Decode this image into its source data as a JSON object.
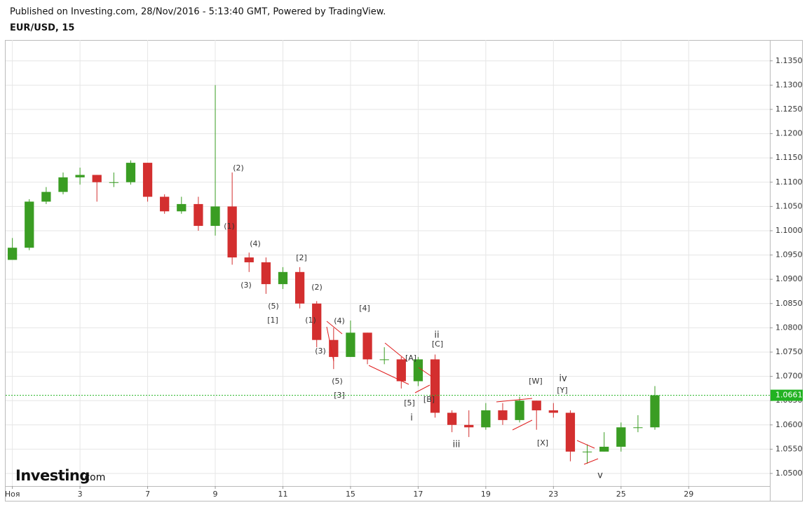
{
  "header": {
    "published": "Published on Investing.com, 28/Nov/2016 - 5:13:40 GMT, Powered by TradingView.",
    "symbol": "EUR/USD, 15"
  },
  "logo": {
    "brand": "Investing",
    "suffix": ".com"
  },
  "chart_data": {
    "type": "candlestick",
    "x": [
      0,
      0.5,
      1,
      1.5,
      2,
      2.5,
      3,
      3.5,
      4,
      4.5,
      5,
      5.5,
      6,
      6.5,
      7,
      7.5,
      8,
      8.5,
      9,
      9.5,
      10,
      10.5,
      11,
      11.5,
      12,
      12.5,
      13,
      13.5,
      14,
      14.5,
      15,
      15.5,
      16,
      16.5,
      17,
      17.5,
      18,
      18.5,
      19
    ],
    "open": [
      1.094,
      1.0965,
      1.106,
      1.108,
      1.111,
      1.1115,
      1.11,
      1.11,
      1.114,
      1.107,
      1.104,
      1.1055,
      1.101,
      1.105,
      1.0945,
      1.0935,
      1.089,
      1.0915,
      1.085,
      1.0775,
      1.074,
      1.079,
      1.0735,
      1.0735,
      1.069,
      1.0735,
      1.0625,
      1.06,
      1.0595,
      1.063,
      1.061,
      1.065,
      1.063,
      1.0625,
      1.0545,
      1.0545,
      1.0555,
      1.0595,
      1.0595
    ],
    "high": [
      1.0985,
      1.1065,
      1.109,
      1.112,
      1.113,
      1.1115,
      1.112,
      1.1145,
      1.114,
      1.1075,
      1.107,
      1.107,
      1.13,
      1.112,
      1.0955,
      1.0945,
      1.0925,
      1.0925,
      1.0855,
      1.08,
      1.0815,
      1.079,
      1.076,
      1.074,
      1.074,
      1.0745,
      1.063,
      1.063,
      1.0645,
      1.0645,
      1.0658,
      1.065,
      1.0645,
      1.063,
      1.056,
      1.0585,
      1.0605,
      1.062,
      1.068
    ],
    "low": [
      1.094,
      1.096,
      1.1055,
      1.1075,
      1.1095,
      1.106,
      1.109,
      1.1095,
      1.106,
      1.1035,
      1.1035,
      1.1,
      1.099,
      1.093,
      1.0915,
      1.087,
      1.088,
      1.084,
      1.076,
      1.0715,
      1.074,
      1.0725,
      1.0725,
      1.0675,
      1.068,
      1.0615,
      1.0585,
      1.0575,
      1.059,
      1.06,
      1.0605,
      1.059,
      1.0615,
      1.0525,
      1.052,
      1.0545,
      1.0545,
      1.0585,
      1.059
    ],
    "close": [
      1.0965,
      1.106,
      1.108,
      1.111,
      1.1115,
      1.11,
      1.11,
      1.114,
      1.107,
      1.104,
      1.1055,
      1.101,
      1.105,
      1.0945,
      1.0935,
      1.089,
      1.0915,
      1.085,
      1.0775,
      1.074,
      1.079,
      1.0735,
      1.0735,
      1.069,
      1.0735,
      1.0625,
      1.06,
      1.0595,
      1.063,
      1.061,
      1.065,
      1.063,
      1.0625,
      1.0545,
      1.0545,
      1.0555,
      1.0595,
      1.0595,
      1.0661
    ],
    "up_color": "#3a9d23",
    "down_color": "#d32f2f",
    "last_price": {
      "value": 1.0661,
      "label": "1.0661"
    },
    "last_price_color": "#22b222",
    "xlim": [
      -0.2,
      22.4
    ],
    "xticks": [
      {
        "value": 0,
        "label": "Ноя"
      },
      {
        "value": 2,
        "label": "3"
      },
      {
        "value": 4,
        "label": "7"
      },
      {
        "value": 6,
        "label": "9"
      },
      {
        "value": 8,
        "label": "11"
      },
      {
        "value": 10,
        "label": "15"
      },
      {
        "value": 12,
        "label": "17"
      },
      {
        "value": 14,
        "label": "19"
      },
      {
        "value": 16,
        "label": "23"
      },
      {
        "value": 18,
        "label": "25"
      },
      {
        "value": 20,
        "label": "29"
      }
    ],
    "ylim": [
      1.0474,
      1.1393
    ],
    "yticks": [
      {
        "value": 1.05,
        "label": "1.0500"
      },
      {
        "value": 1.055,
        "label": "1.0550"
      },
      {
        "value": 1.06,
        "label": "1.0600"
      },
      {
        "value": 1.065,
        "label": "1.0650"
      },
      {
        "value": 1.07,
        "label": "1.0700"
      },
      {
        "value": 1.075,
        "label": "1.0750"
      },
      {
        "value": 1.08,
        "label": "1.0800"
      },
      {
        "value": 1.085,
        "label": "1.0850"
      },
      {
        "value": 1.09,
        "label": "1.0900"
      },
      {
        "value": 1.095,
        "label": "1.0950"
      },
      {
        "value": 1.1,
        "label": "1.1000"
      },
      {
        "value": 1.105,
        "label": "1.1050"
      },
      {
        "value": 1.11,
        "label": "1.1100"
      },
      {
        "value": 1.115,
        "label": "1.1150"
      },
      {
        "value": 1.12,
        "label": "1.1200"
      },
      {
        "value": 1.125,
        "label": "1.1250"
      },
      {
        "value": 1.13,
        "label": "1.1300"
      },
      {
        "value": 1.135,
        "label": "1.1350"
      }
    ],
    "grid": true,
    "annotations": [
      "(2)",
      "(1)",
      "(4)",
      "(3)",
      "(5)",
      "[1]",
      "[2]",
      "(2)",
      "(1)",
      "(4)",
      "(3)",
      "[4]",
      "(5)",
      "[3]",
      "[A]",
      "ii",
      "[C]",
      "[5]",
      "[B]",
      "i",
      "iii",
      "[W]",
      "iv",
      "[Y]",
      "[X]",
      "v"
    ]
  }
}
